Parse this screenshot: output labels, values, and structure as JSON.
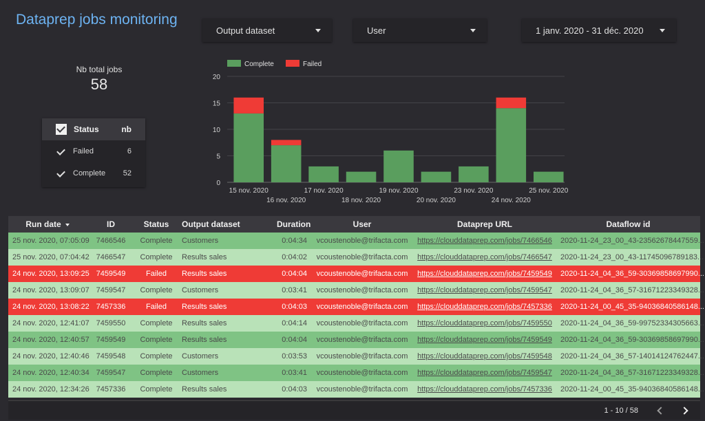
{
  "title": "Dataprep jobs monitoring",
  "filters": {
    "output_dataset": "Output dataset",
    "user": "User",
    "date_range": "1 janv. 2020 - 31 déc. 2020"
  },
  "kpi": {
    "label": "Nb total jobs",
    "value": "58"
  },
  "status_table": {
    "header": {
      "status": "Status",
      "nb": "nb"
    },
    "rows": [
      {
        "status": "Failed",
        "nb": "6"
      },
      {
        "status": "Complete",
        "nb": "52"
      }
    ]
  },
  "colors": {
    "complete": "#5a9e5e",
    "failed": "#ef3b36",
    "accent": "#6db3f2"
  },
  "chart_data": {
    "type": "bar",
    "stacked": true,
    "categories": [
      "15 nov. 2020",
      "16 nov. 2020",
      "17 nov. 2020",
      "18 nov. 2020",
      "19 nov. 2020",
      "20 nov. 2020",
      "23 nov. 2020",
      "24 nov. 2020",
      "25 nov. 2020"
    ],
    "series": [
      {
        "name": "Complete",
        "values": [
          13,
          7,
          3,
          2,
          6,
          2,
          3,
          14,
          2
        ]
      },
      {
        "name": "Failed",
        "values": [
          3,
          1,
          0,
          0,
          0,
          0,
          0,
          2,
          0
        ]
      }
    ],
    "ylim": [
      0,
      20
    ],
    "yticks": [
      0,
      5,
      10,
      15,
      20
    ],
    "legend": "top-left",
    "grid": true
  },
  "table": {
    "columns": [
      "Run date",
      "ID",
      "Status",
      "Output dataset",
      "Duration",
      "User",
      "Dataprep URL",
      "Dataflow id"
    ],
    "rows": [
      {
        "run_date": "25 nov. 2020, 07:05:09",
        "id": "7466546",
        "status": "Complete",
        "output": "Customers",
        "duration": "0:04:34",
        "user": "vcoustenoble@trifacta.com",
        "url": "https://clouddataprep.com/jobs/7466546",
        "dataflow": "2020-11-24_23_00_43-23562678447559..."
      },
      {
        "run_date": "25 nov. 2020, 07:04:42",
        "id": "7466547",
        "status": "Complete",
        "output": "Results sales",
        "duration": "0:04:02",
        "user": "vcoustenoble@trifacta.com",
        "url": "https://clouddataprep.com/jobs/7466547",
        "dataflow": "2020-11-24_23_00_43-11745096789183..."
      },
      {
        "run_date": "24 nov. 2020, 13:09:25",
        "id": "7459549",
        "status": "Failed",
        "output": "Results sales",
        "duration": "0:04:04",
        "user": "vcoustenoble@trifacta.com",
        "url": "https://clouddataprep.com/jobs/7459549",
        "dataflow": "2020-11-24_04_36_59-30369858697990..."
      },
      {
        "run_date": "24 nov. 2020, 13:09:07",
        "id": "7459547",
        "status": "Complete",
        "output": "Customers",
        "duration": "0:03:41",
        "user": "vcoustenoble@trifacta.com",
        "url": "https://clouddataprep.com/jobs/7459547",
        "dataflow": "2020-11-24_04_36_57-31671223349328..."
      },
      {
        "run_date": "24 nov. 2020, 13:08:22",
        "id": "7457336",
        "status": "Failed",
        "output": "Results sales",
        "duration": "0:04:03",
        "user": "vcoustenoble@trifacta.com",
        "url": "https://clouddataprep.com/jobs/7457336",
        "dataflow": "2020-11-24_00_45_35-94036840586148..."
      },
      {
        "run_date": "24 nov. 2020, 12:41:07",
        "id": "7459550",
        "status": "Complete",
        "output": "Results sales",
        "duration": "0:04:14",
        "user": "vcoustenoble@trifacta.com",
        "url": "https://clouddataprep.com/jobs/7459550",
        "dataflow": "2020-11-24_04_36_59-99752334305663..."
      },
      {
        "run_date": "24 nov. 2020, 12:40:57",
        "id": "7459549",
        "status": "Complete",
        "output": "Results sales",
        "duration": "0:04:04",
        "user": "vcoustenoble@trifacta.com",
        "url": "https://clouddataprep.com/jobs/7459549",
        "dataflow": "2020-11-24_04_36_59-30369858697990..."
      },
      {
        "run_date": "24 nov. 2020, 12:40:46",
        "id": "7459548",
        "status": "Complete",
        "output": "Customers",
        "duration": "0:03:53",
        "user": "vcoustenoble@trifacta.com",
        "url": "https://clouddataprep.com/jobs/7459548",
        "dataflow": "2020-11-24_04_36_57-14014124762447..."
      },
      {
        "run_date": "24 nov. 2020, 12:40:34",
        "id": "7459547",
        "status": "Complete",
        "output": "Customers",
        "duration": "0:03:41",
        "user": "vcoustenoble@trifacta.com",
        "url": "https://clouddataprep.com/jobs/7459547",
        "dataflow": "2020-11-24_04_36_57-31671223349328..."
      },
      {
        "run_date": "24 nov. 2020, 12:34:26",
        "id": "7457336",
        "status": "Complete",
        "output": "Results sales",
        "duration": "0:04:03",
        "user": "vcoustenoble@trifacta.com",
        "url": "https://clouddataprep.com/jobs/7457336",
        "dataflow": "2020-11-24_00_45_35-94036840586148..."
      }
    ]
  },
  "pagination": {
    "range": "1 - 10 / 58"
  },
  "icons": {
    "prev": "chevron-left-icon",
    "next": "chevron-right-icon",
    "dropdown": "caret-down-icon",
    "check": "checkbox-checked-icon"
  }
}
